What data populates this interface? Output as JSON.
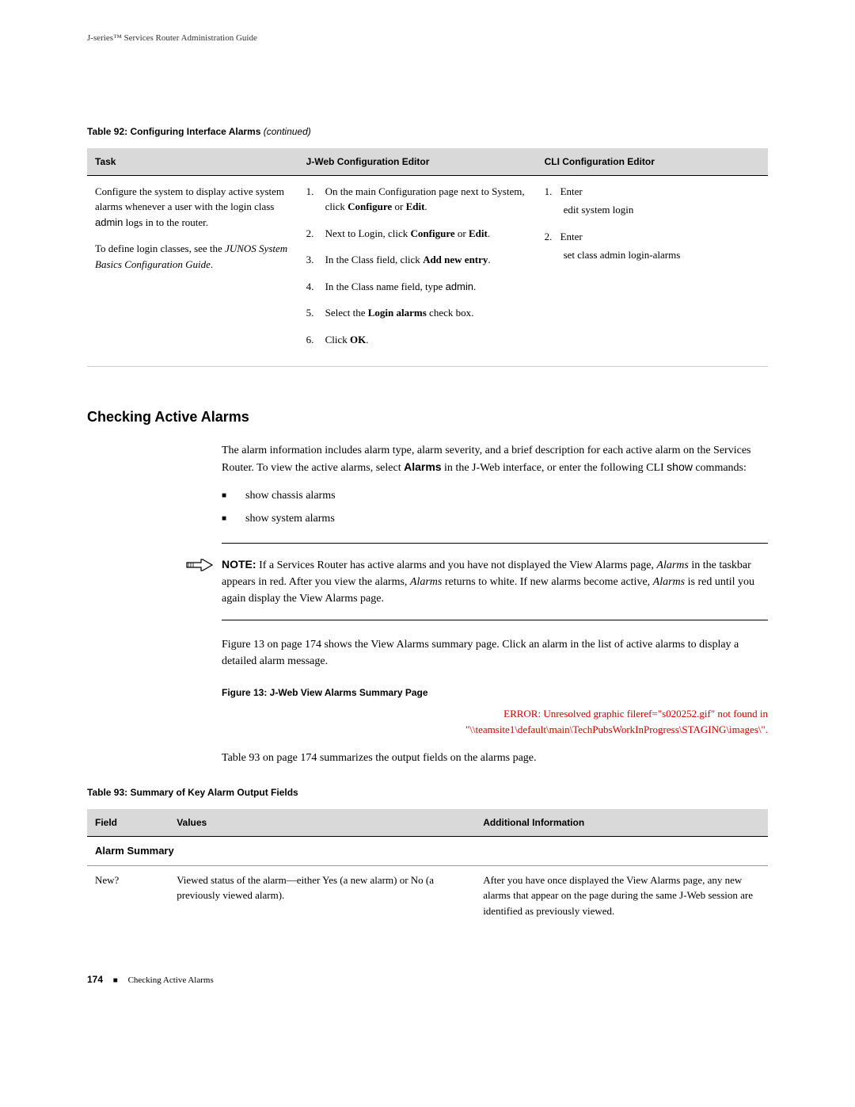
{
  "header": {
    "running_head": "J-series™ Services Router Administration Guide"
  },
  "table92": {
    "caption_prefix": "Table 92: Configuring Interface Alarms",
    "caption_suffix": "(continued)",
    "headers": {
      "task": "Task",
      "jweb": "J-Web Configuration Editor",
      "cli": "CLI Configuration Editor"
    },
    "row": {
      "task_p1_a": "Configure the system to display active system alarms whenever a user with the login class ",
      "task_p1_b": "admin",
      "task_p1_c": " logs in to the router.",
      "task_p2_a": "To define login classes, see the ",
      "task_p2_b": "JUNOS System Basics Configuration Guide",
      "task_p2_c": ".",
      "jweb": [
        {
          "pre": "On the main Configuration page next to System, click ",
          "bold": "Configure",
          "mid": " or ",
          "bold2": "Edit",
          "post": "."
        },
        {
          "pre": "Next to Login, click ",
          "bold": "Configure",
          "mid": " or ",
          "bold2": "Edit",
          "post": "."
        },
        {
          "pre": "In the Class field, click ",
          "bold": "Add new entry",
          "post": "."
        },
        {
          "pre": "In the Class name field, type ",
          "sans": "admin",
          "post": "."
        },
        {
          "pre": "Select the ",
          "bold": "Login alarms",
          "post": " check box."
        },
        {
          "pre": "Click ",
          "bold": "OK",
          "post": "."
        }
      ],
      "cli": [
        {
          "label": "Enter",
          "cmd": "edit system login"
        },
        {
          "label": "Enter",
          "cmd": "set class admin login-alarms"
        }
      ]
    }
  },
  "section": {
    "heading": "Checking Active Alarms",
    "intro_a": "The alarm information includes alarm type, alarm severity, and a brief description for each active alarm on the Services Router. To view the active alarms, select ",
    "intro_b": "Alarms",
    "intro_c": " in the J-Web interface, or enter the following CLI ",
    "intro_d": "show",
    "intro_e": " commands:",
    "bullets": [
      "show chassis alarms",
      "show system alarms"
    ],
    "note": {
      "label": "NOTE:",
      "text_a": "  If a Services Router has active alarms and you have not displayed the View Alarms page, ",
      "text_b": "Alarms",
      "text_c": " in the taskbar appears in red. After you view the alarms, ",
      "text_d": "Alarms",
      "text_e": " returns to white. If new alarms become active, ",
      "text_f": "Alarms",
      "text_g": " is red until you again display the View Alarms page."
    },
    "fig_ref": "Figure 13 on page 174 shows the View Alarms summary page. Click an alarm in the list of active alarms to display a detailed alarm message.",
    "figure_caption": "Figure 13: J-Web View Alarms Summary Page",
    "error_line1": "ERROR: Unresolved graphic fileref=\"s020252.gif\" not found in",
    "error_line2": "\"\\\\teamsite1\\default\\main\\TechPubsWorkInProgress\\STAGING\\images\\\".",
    "table_ref": "Table 93 on page 174 summarizes the output fields on the alarms page."
  },
  "table93": {
    "caption": "Table 93: Summary of Key Alarm Output Fields",
    "headers": {
      "field": "Field",
      "values": "Values",
      "addl": "Additional Information"
    },
    "section_row": "Alarm Summary",
    "rows": [
      {
        "field": "New?",
        "values": "Viewed status of the alarm—either Yes (a new alarm) or No (a previously viewed alarm).",
        "addl": "After you have once displayed the View Alarms page, any new alarms that appear on the page during the same J-Web session are identified as previously viewed."
      }
    ]
  },
  "footer": {
    "page": "174",
    "title": "Checking Active Alarms"
  }
}
